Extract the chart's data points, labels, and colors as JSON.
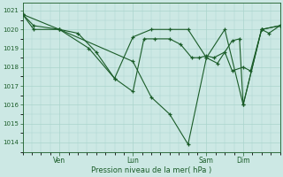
{
  "title": "",
  "xlabel": "Pression niveau de la mer( hPa )",
  "ylabel": "",
  "bg_color": "#cce8e4",
  "grid_color": "#aad4cc",
  "line_color": "#1a5c28",
  "marker_color": "#1a5c28",
  "ylim": [
    1013.5,
    1021.4
  ],
  "yticks": [
    1014,
    1015,
    1016,
    1017,
    1018,
    1019,
    1020,
    1021
  ],
  "xtick_positions": [
    1,
    3,
    5,
    6
  ],
  "xtick_labels": [
    "Ven",
    "Lun",
    "Sam",
    "Dim"
  ],
  "xlim": [
    0,
    7
  ],
  "series1_x": [
    0,
    0.3,
    1,
    1.5,
    2,
    2.5,
    3,
    3.3,
    3.6,
    4,
    4.3,
    4.6,
    4.8,
    5,
    5.2,
    5.5,
    5.7,
    6,
    6.2,
    6.5,
    6.7,
    7
  ],
  "series1_y": [
    1020.8,
    1020.2,
    1020.0,
    1019.8,
    1018.8,
    1017.4,
    1016.7,
    1019.5,
    1019.5,
    1019.5,
    1019.2,
    1018.5,
    1018.5,
    1018.6,
    1018.5,
    1018.8,
    1017.8,
    1018.0,
    1017.8,
    1020.0,
    1019.8,
    1020.2
  ],
  "series2_x": [
    0,
    0.3,
    1,
    1.8,
    2.5,
    3,
    3.5,
    4,
    4.5,
    5,
    5.3,
    5.7,
    5.9,
    6,
    6.5,
    7
  ],
  "series2_y": [
    1020.8,
    1020.0,
    1020.0,
    1019.0,
    1017.4,
    1019.6,
    1020.0,
    1020.0,
    1020.0,
    1018.5,
    1018.2,
    1019.4,
    1019.5,
    1016.0,
    1020.0,
    1020.2
  ],
  "series3_x": [
    0,
    1,
    3,
    3.5,
    4,
    4.5,
    5,
    5.5,
    6,
    6.5,
    7
  ],
  "series3_y": [
    1020.8,
    1020.0,
    1018.3,
    1016.4,
    1015.5,
    1013.9,
    1018.5,
    1020.0,
    1016.0,
    1020.0,
    1020.2
  ]
}
